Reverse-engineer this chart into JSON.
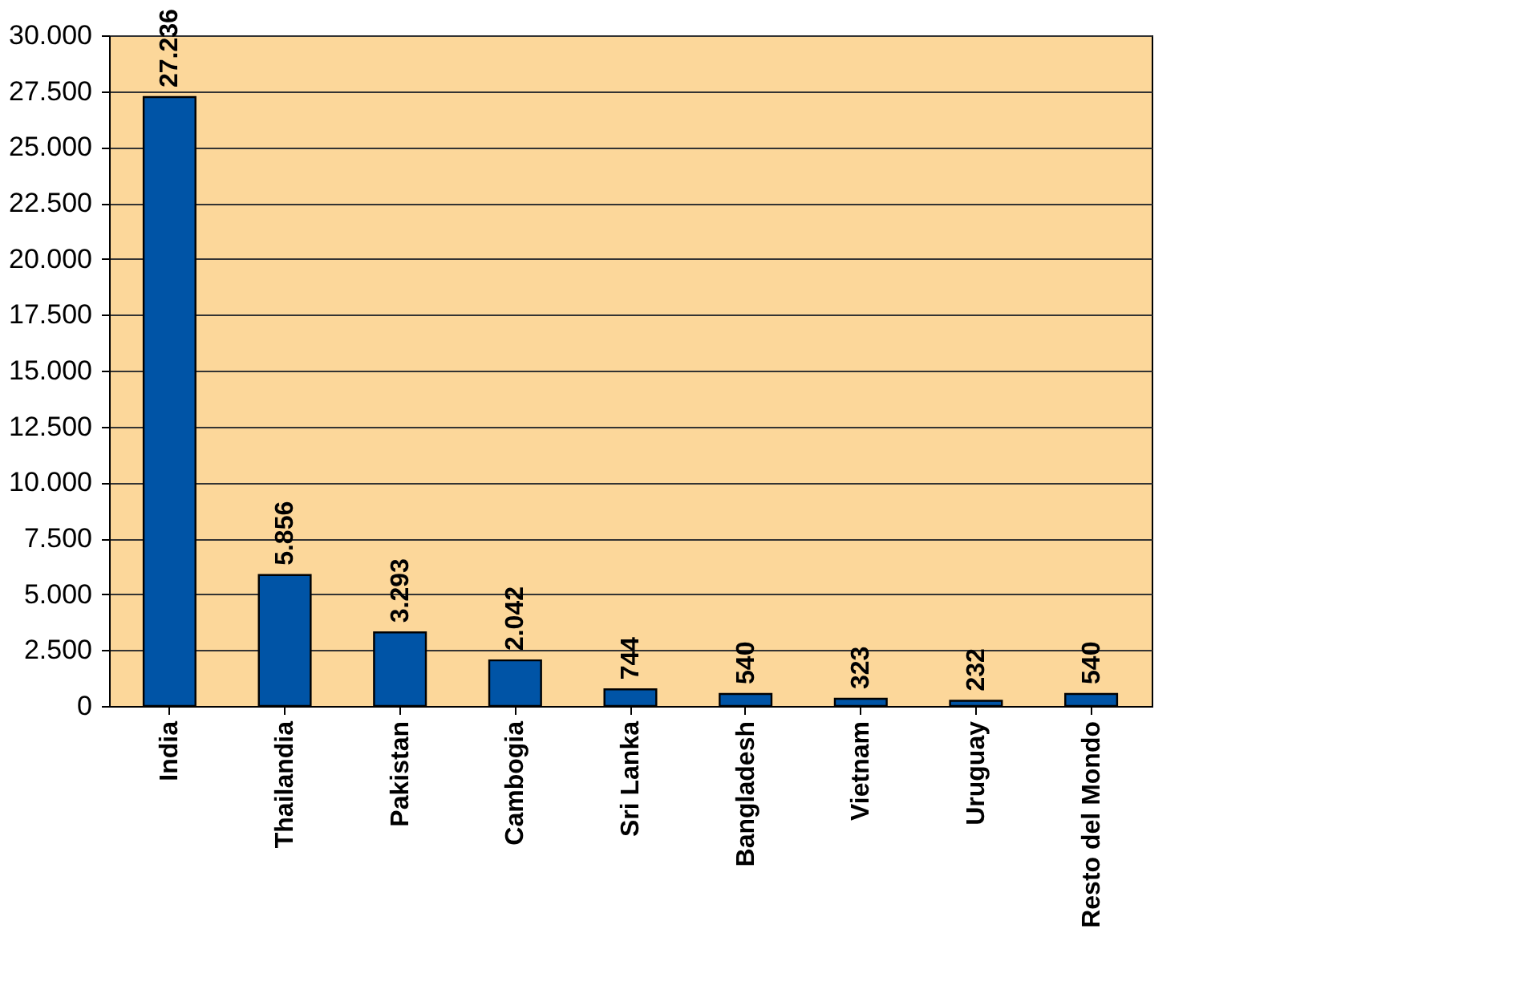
{
  "chart_data": {
    "type": "bar",
    "categories": [
      "India",
      "Thailandia",
      "Pakistan",
      "Cambogia",
      "Sri Lanka",
      "Bangladesh",
      "Vietnam",
      "Uruguay",
      "Resto del Mondo"
    ],
    "values": [
      27236,
      5856,
      3293,
      2042,
      744,
      540,
      323,
      232,
      540
    ],
    "value_labels": [
      "27.236",
      "5.856",
      "3.293",
      "2.042",
      "744",
      "540",
      "323",
      "232",
      "540"
    ],
    "color": "#0054a6",
    "ylim": [
      0,
      30000
    ],
    "yticks": [
      {
        "value": 0,
        "label": "0"
      },
      {
        "value": 2500,
        "label": "2.500"
      },
      {
        "value": 5000,
        "label": "5.000"
      },
      {
        "value": 7500,
        "label": "7.500"
      },
      {
        "value": 10000,
        "label": "10.000"
      },
      {
        "value": 12500,
        "label": "12.500"
      },
      {
        "value": 15000,
        "label": "15.000"
      },
      {
        "value": 17500,
        "label": "17.500"
      },
      {
        "value": 20000,
        "label": "20.000"
      },
      {
        "value": 22500,
        "label": "22.500"
      },
      {
        "value": 25000,
        "label": "25.000"
      },
      {
        "value": 27500,
        "label": "27.500"
      },
      {
        "value": 30000,
        "label": "30.000"
      }
    ],
    "grid": "y"
  }
}
